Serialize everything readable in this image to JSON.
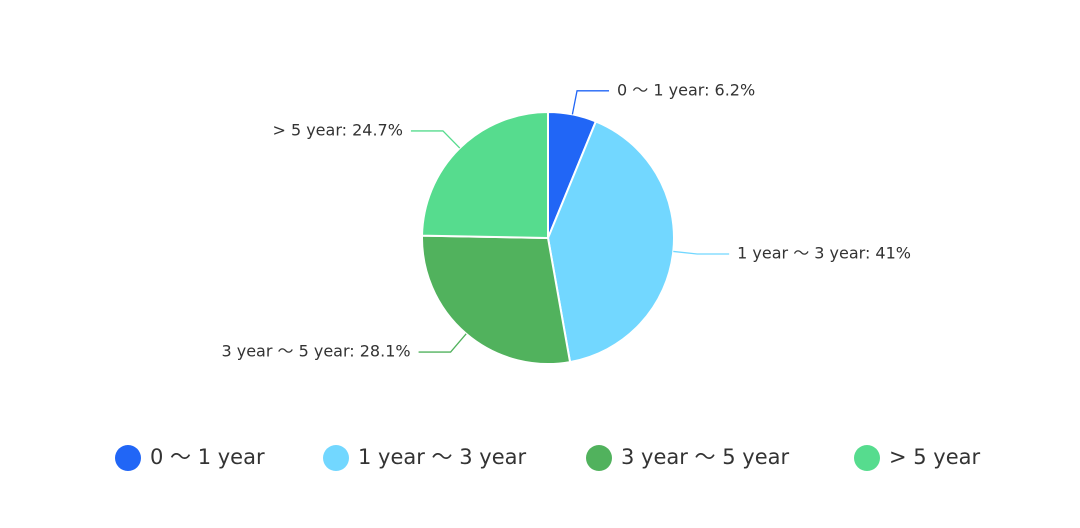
{
  "chart_data": {
    "type": "pie",
    "categories": [
      "0 ～ 1 year",
      "1 year ～ 3 year",
      "3 year ～ 5 year",
      "> 5 year"
    ],
    "values": [
      6.2,
      41,
      28.1,
      24.7
    ],
    "value_labels": [
      "0 ～ 1 year: 6.2%",
      "1 year ～ 3 year: 41%",
      "3 year ～ 5 year: 28.1%",
      "> 5 year: 24.7%"
    ],
    "colors": [
      "#2166f6",
      "#72d7ff",
      "#51b25d",
      "#56dc8e"
    ],
    "legend": "bottom"
  }
}
